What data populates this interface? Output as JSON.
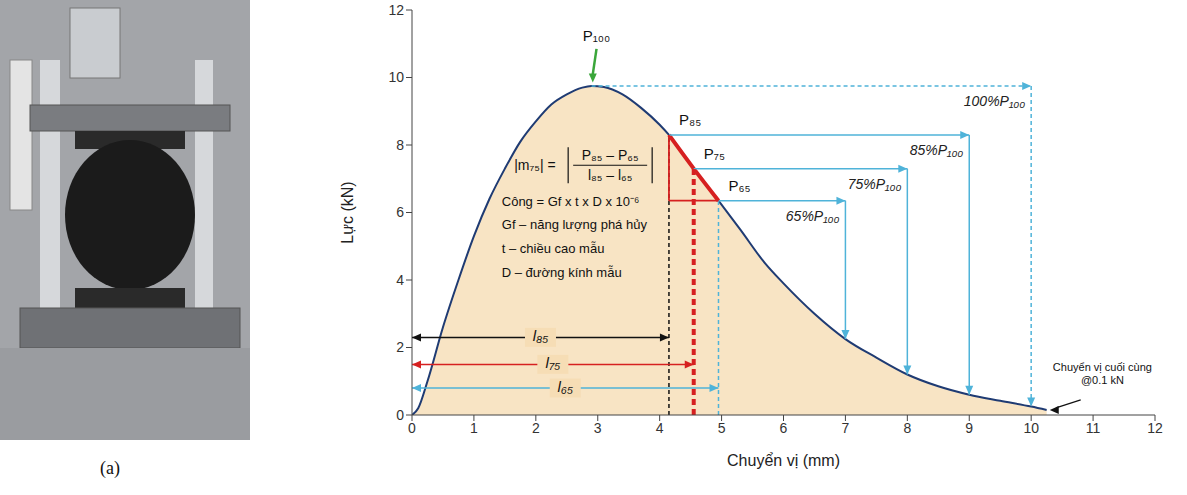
{
  "chart_data": {
    "type": "area",
    "x": [
      0,
      0.1,
      0.25,
      0.5,
      0.75,
      1,
      1.25,
      1.5,
      1.75,
      2,
      2.25,
      2.5,
      2.75,
      2.9,
      3.1,
      3.4,
      3.7,
      4.0,
      4.15,
      4.55,
      4.95,
      5.3,
      5.7,
      6.0,
      6.5,
      7,
      7.5,
      8,
      8.5,
      9,
      9.5,
      10,
      10.25
    ],
    "values": [
      0,
      0.2,
      1.0,
      2.6,
      4.0,
      5.3,
      6.4,
      7.3,
      8.1,
      8.7,
      9.2,
      9.5,
      9.7,
      9.75,
      9.72,
      9.5,
      9.1,
      8.6,
      8.3,
      7.3,
      6.35,
      5.5,
      4.5,
      3.9,
      3.0,
      2.25,
      1.7,
      1.2,
      0.85,
      0.6,
      0.42,
      0.25,
      0.15
    ],
    "color": "#1f3b73",
    "xlim": [
      0,
      12
    ],
    "ylim": [
      0,
      12
    ],
    "xticks": [
      0,
      1,
      2,
      3,
      4,
      5,
      6,
      7,
      8,
      9,
      10,
      11,
      12
    ],
    "yticks": [
      0,
      2,
      4,
      6,
      8,
      10,
      12
    ],
    "x_label": "Chuyển vị (mm)",
    "y_label": "Lực (kN)",
    "grid": false,
    "points": [
      {
        "label": "P₁₀₀",
        "x": 2.9,
        "y": 9.75,
        "level_label": "100%P₁₀₀",
        "x_end": 10,
        "y_end": 0.25,
        "line_style": "dashed",
        "color": "#3aa63a"
      },
      {
        "label": "P₈₅",
        "x": 4.15,
        "y": 8.3,
        "level_label": "85%P₁₀₀",
        "x_end": 9,
        "y_end": 0.6,
        "line_style": "solid",
        "length_label": "l₈₅",
        "color": "#111111"
      },
      {
        "label": "P₇₅",
        "x": 4.55,
        "y": 7.3,
        "level_label": "75%P₁₀₀",
        "x_end": 8,
        "y_end": 1.2,
        "line_style": "solid",
        "length_label": "l₇₅",
        "color": "#d62020"
      },
      {
        "label": "P₆₅",
        "x": 4.95,
        "y": 6.35,
        "level_label": "65%P₁₀₀",
        "x_end": 7,
        "y_end": 2.25,
        "line_style": "solid",
        "length_label": "l₆₅",
        "color": "#4fb3d9"
      }
    ],
    "formula": {
      "lhs": "|m₇₅| =",
      "numerator": "P₈₅ – P₆₅",
      "denominator": "l₈₅ – l₆₅"
    },
    "notes": [
      "Công = Gf x t x D x 10⁻⁶",
      "Gf – năng lượng phá hủy",
      "t – chiều cao mẫu",
      "D – đường kính mẫu"
    ],
    "end_note": [
      "Chuyển vị cuối cùng",
      "@0.1 kN"
    ]
  },
  "panel_label": "(a)"
}
